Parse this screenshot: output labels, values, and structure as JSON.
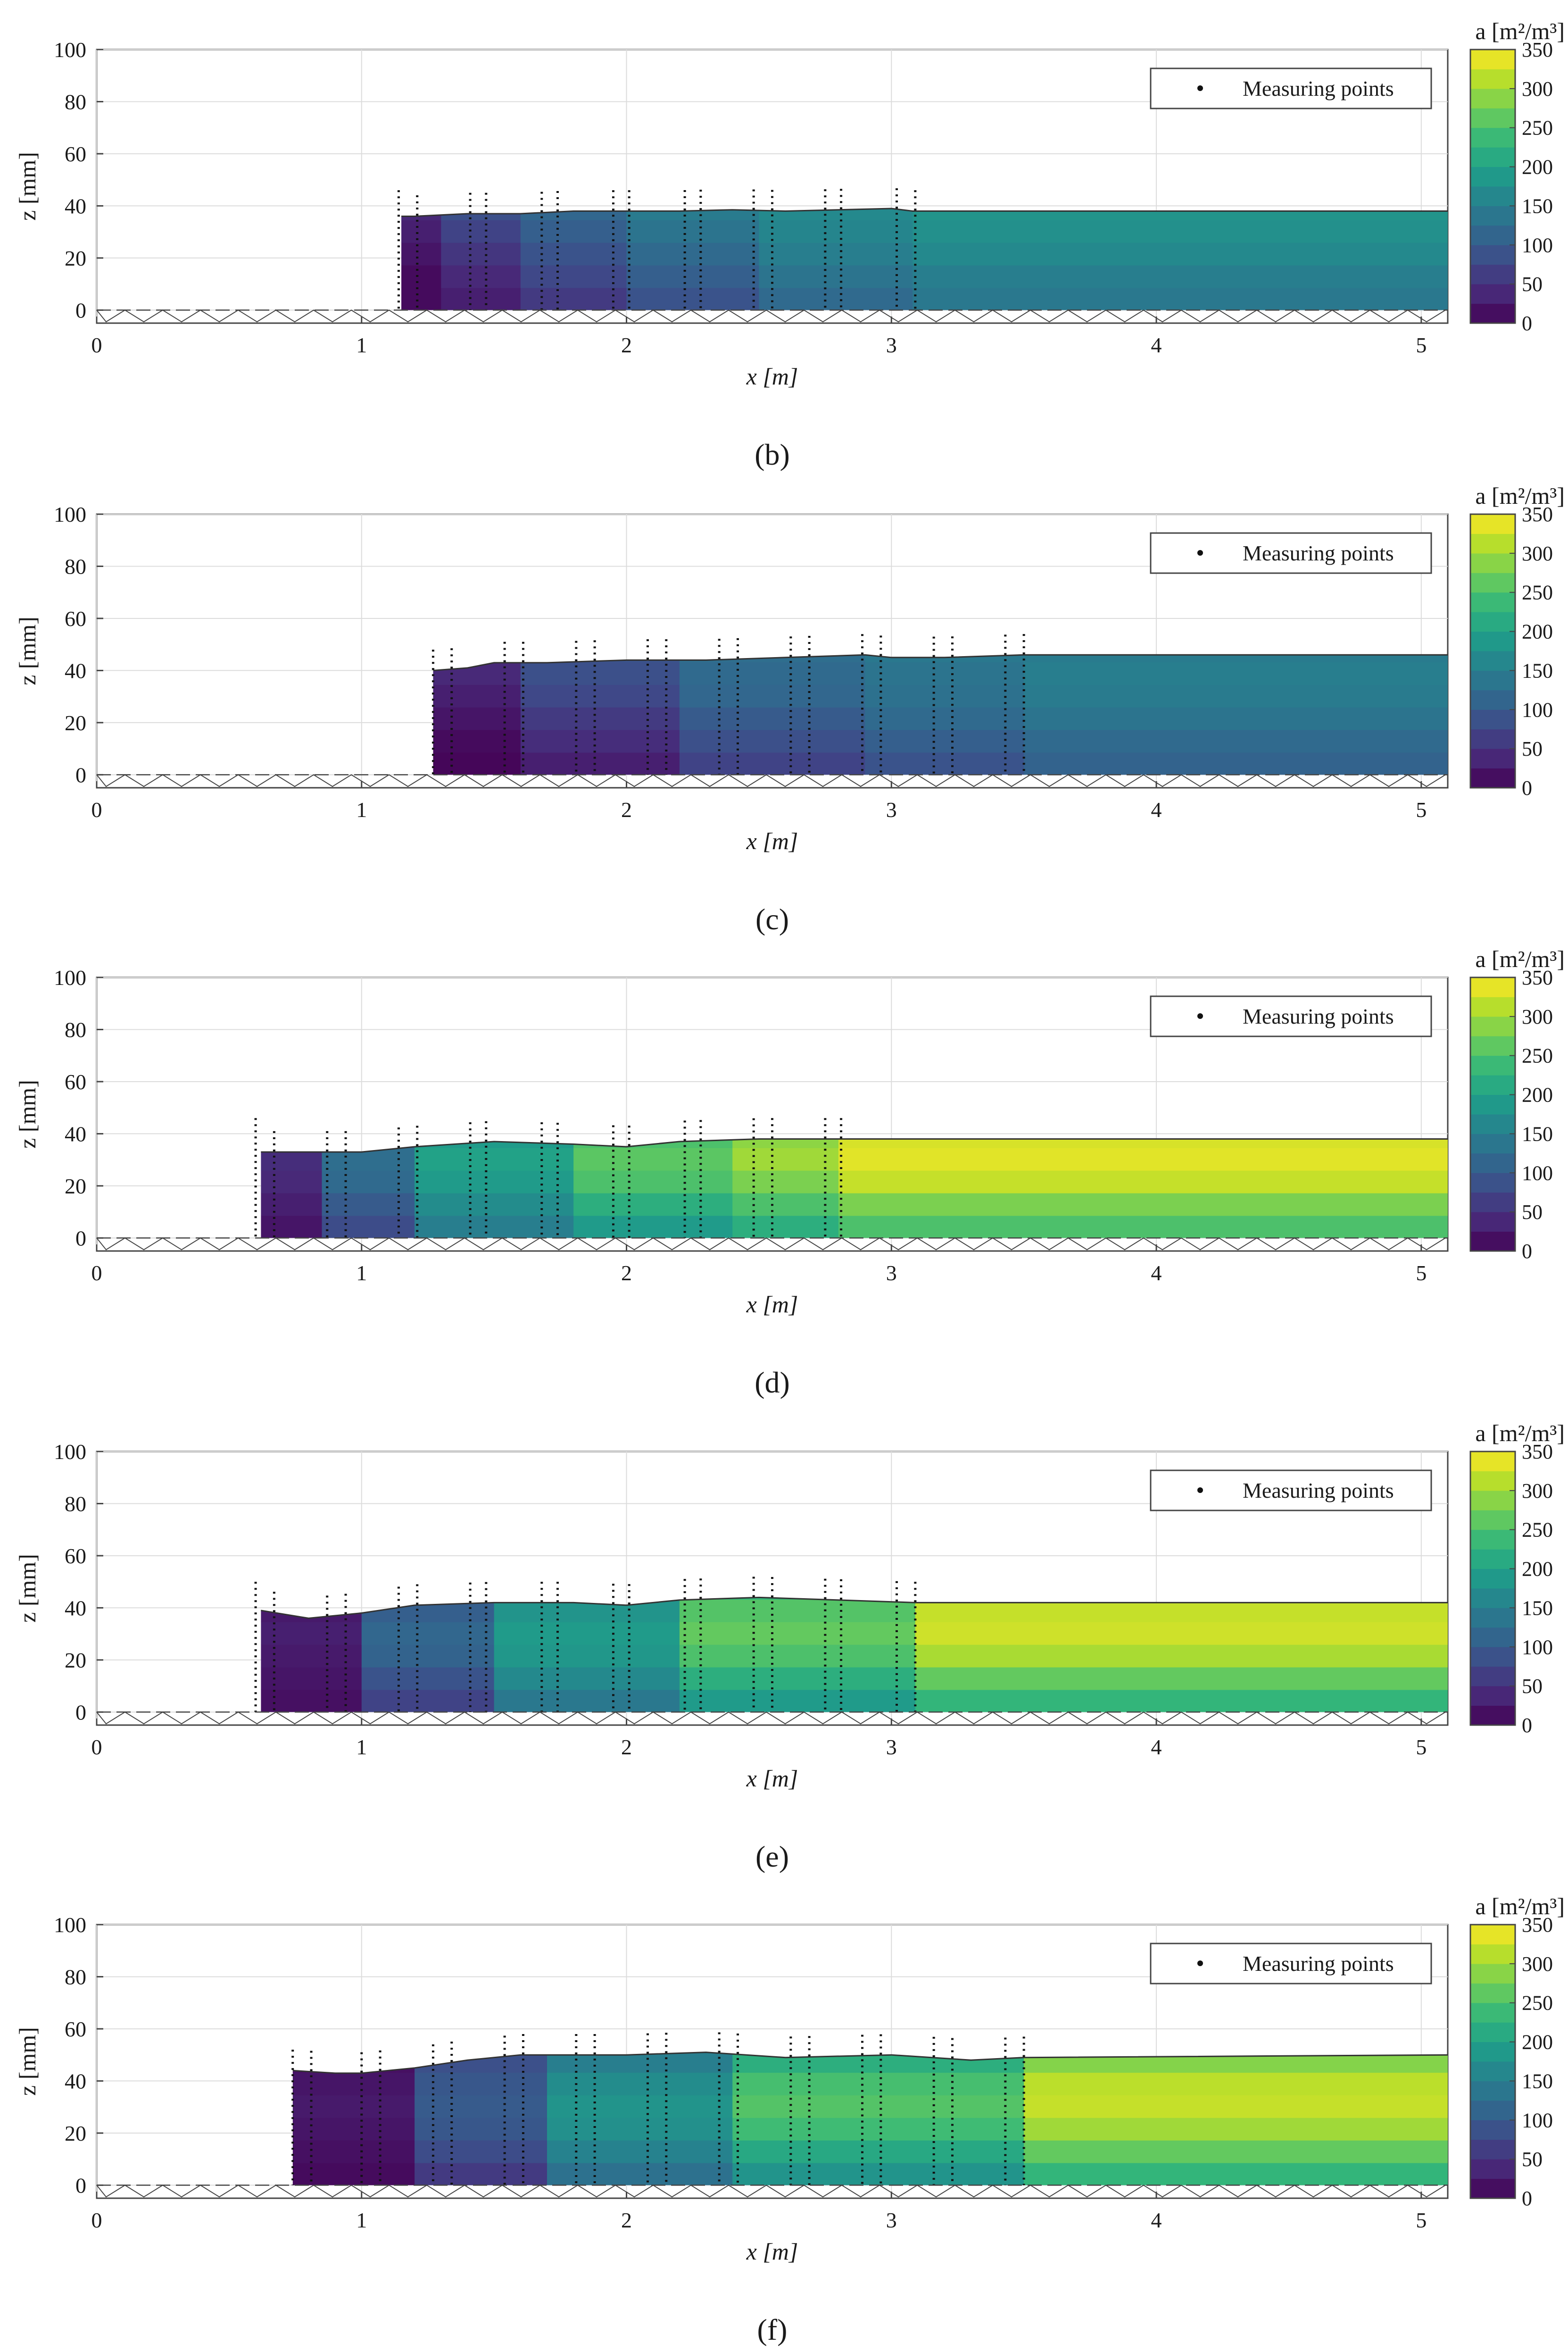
{
  "figure": {
    "colorbar_title": "a [m²/m³]",
    "legend_label": "Measuring points"
  },
  "chart_data": [
    {
      "type": "heatmap",
      "panel_label": "(b)",
      "xlabel": "x [m]",
      "ylabel": "z [mm]",
      "xlim": [
        0,
        5.1
      ],
      "ylim": [
        -5,
        100
      ],
      "xticks": [
        "0",
        "1",
        "2",
        "3",
        "4",
        "5"
      ],
      "yticks": [
        "0",
        "20",
        "40",
        "60",
        "80",
        "100"
      ],
      "colorbar": {
        "label": "a [m²/m³]",
        "range": [
          0,
          350
        ],
        "ticks": [
          "0",
          "50",
          "100",
          "150",
          "200",
          "250",
          "300",
          "350"
        ]
      },
      "legend": "Measuring points",
      "flow_region": {
        "x_start": 1.15,
        "x_end": 5.1,
        "profile_end_x": 3.08,
        "bottom_start_x": 1.18
      },
      "surface_profile": [
        [
          1.15,
          36
        ],
        [
          1.2,
          36
        ],
        [
          1.4,
          37
        ],
        [
          1.6,
          37
        ],
        [
          1.8,
          38
        ],
        [
          2.0,
          38
        ],
        [
          2.2,
          38
        ],
        [
          2.4,
          38.5
        ],
        [
          2.6,
          38
        ],
        [
          2.8,
          38.5
        ],
        [
          3.0,
          39
        ],
        [
          3.08,
          38
        ],
        [
          5.1,
          38
        ]
      ],
      "measuring_stations_x": [
        1.14,
        1.21,
        1.41,
        1.47,
        1.68,
        1.74,
        1.95,
        2.01,
        2.22,
        2.28,
        2.48,
        2.55,
        2.75,
        2.81,
        3.02,
        3.09
      ],
      "area_bands": [
        {
          "x_end": 1.3,
          "values": [
            10,
            10,
            20,
            30,
            40,
            50
          ]
        },
        {
          "x_end": 1.6,
          "values": [
            30,
            40,
            55,
            70,
            85,
            95
          ]
        },
        {
          "x_end": 2.0,
          "values": [
            60,
            75,
            90,
            105,
            115,
            120
          ]
        },
        {
          "x_end": 2.5,
          "values": [
            90,
            105,
            120,
            135,
            145,
            150
          ]
        },
        {
          "x_end": 3.08,
          "values": [
            120,
            135,
            150,
            160,
            165,
            170
          ]
        },
        {
          "x_end": 5.1,
          "values": [
            140,
            150,
            165,
            175,
            180,
            175
          ]
        }
      ]
    },
    {
      "type": "heatmap",
      "panel_label": "(c)",
      "xlabel": "x [m]",
      "ylabel": "z [mm]",
      "xlim": [
        0,
        5.1
      ],
      "ylim": [
        -5,
        100
      ],
      "xticks": [
        "0",
        "1",
        "2",
        "3",
        "4",
        "5"
      ],
      "yticks": [
        "0",
        "20",
        "40",
        "60",
        "80",
        "100"
      ],
      "colorbar": {
        "label": "a [m²/m³]",
        "range": [
          0,
          350
        ],
        "ticks": [
          "0",
          "50",
          "100",
          "150",
          "200",
          "250",
          "300",
          "350"
        ]
      },
      "legend": "Measuring points",
      "flow_region": {
        "x_start": 1.27,
        "x_end": 5.1,
        "profile_end_x": 3.5,
        "bottom_start_x": 1.45
      },
      "surface_profile": [
        [
          1.27,
          40
        ],
        [
          1.4,
          41
        ],
        [
          1.5,
          43
        ],
        [
          1.7,
          43
        ],
        [
          2.0,
          44
        ],
        [
          2.3,
          44
        ],
        [
          2.6,
          45
        ],
        [
          2.9,
          46
        ],
        [
          3.0,
          45
        ],
        [
          3.2,
          45
        ],
        [
          3.5,
          46
        ],
        [
          5.1,
          46
        ]
      ],
      "measuring_stations_x": [
        1.27,
        1.34,
        1.54,
        1.61,
        1.81,
        1.88,
        2.08,
        2.15,
        2.35,
        2.42,
        2.62,
        2.69,
        2.89,
        2.96,
        3.16,
        3.23,
        3.43,
        3.5
      ],
      "area_bands": [
        {
          "x_end": 1.6,
          "values": [
            5,
            10,
            20,
            30,
            40,
            45
          ]
        },
        {
          "x_end": 2.2,
          "values": [
            30,
            45,
            60,
            75,
            85,
            90
          ]
        },
        {
          "x_end": 2.9,
          "values": [
            70,
            85,
            100,
            115,
            120,
            125
          ]
        },
        {
          "x_end": 3.5,
          "values": [
            90,
            105,
            120,
            130,
            135,
            140
          ]
        },
        {
          "x_end": 5.1,
          "values": [
            110,
            120,
            135,
            145,
            150,
            145
          ]
        }
      ]
    },
    {
      "type": "heatmap",
      "panel_label": "(d)",
      "xlabel": "x [m]",
      "ylabel": "z [mm]",
      "xlim": [
        0,
        5.1
      ],
      "ylim": [
        -5,
        100
      ],
      "xticks": [
        "0",
        "1",
        "2",
        "3",
        "4",
        "5"
      ],
      "yticks": [
        "0",
        "20",
        "40",
        "60",
        "80",
        "100"
      ],
      "colorbar": {
        "label": "a [m²/m³]",
        "range": [
          0,
          350
        ],
        "ticks": [
          "0",
          "50",
          "100",
          "150",
          "200",
          "250",
          "300",
          "350"
        ]
      },
      "legend": "Measuring points",
      "flow_region": {
        "x_start": 0.62,
        "x_end": 5.1,
        "profile_end_x": 2.8,
        "bottom_start_x": 0.62
      },
      "surface_profile": [
        [
          0.62,
          33
        ],
        [
          0.8,
          33
        ],
        [
          1.0,
          33
        ],
        [
          1.2,
          35
        ],
        [
          1.5,
          37
        ],
        [
          1.8,
          36
        ],
        [
          2.0,
          35
        ],
        [
          2.2,
          37
        ],
        [
          2.5,
          38
        ],
        [
          2.8,
          38
        ],
        [
          3.0,
          38
        ],
        [
          5.1,
          38
        ]
      ],
      "measuring_stations_x": [
        0.6,
        0.67,
        0.87,
        0.94,
        1.14,
        1.21,
        1.41,
        1.47,
        1.68,
        1.74,
        1.95,
        2.01,
        2.22,
        2.28,
        2.48,
        2.55,
        2.75,
        2.81
      ],
      "area_bands": [
        {
          "x_end": 0.85,
          "values": [
            20,
            30,
            40,
            45,
            40,
            30
          ]
        },
        {
          "x_end": 1.2,
          "values": [
            80,
            100,
            120,
            125,
            115,
            100
          ]
        },
        {
          "x_end": 1.8,
          "values": [
            150,
            170,
            190,
            200,
            190,
            170
          ]
        },
        {
          "x_end": 2.4,
          "values": [
            190,
            220,
            250,
            260,
            250,
            230
          ]
        },
        {
          "x_end": 2.8,
          "values": [
            220,
            250,
            280,
            300,
            290,
            270
          ]
        },
        {
          "x_end": 5.1,
          "values": [
            250,
            280,
            320,
            335,
            330,
            300
          ]
        }
      ]
    },
    {
      "type": "heatmap",
      "panel_label": "(e)",
      "xlabel": "x [m]",
      "ylabel": "z [mm]",
      "xlim": [
        0,
        5.1
      ],
      "ylim": [
        -5,
        100
      ],
      "xticks": [
        "0",
        "1",
        "2",
        "3",
        "4",
        "5"
      ],
      "yticks": [
        "0",
        "20",
        "40",
        "60",
        "80",
        "100"
      ],
      "colorbar": {
        "label": "a [m²/m³]",
        "range": [
          0,
          350
        ],
        "ticks": [
          "0",
          "50",
          "100",
          "150",
          "200",
          "250",
          "300",
          "350"
        ]
      },
      "legend": "Measuring points",
      "flow_region": {
        "x_start": 0.62,
        "x_end": 5.1,
        "profile_end_x": 3.09,
        "bottom_start_x": 0.87
      },
      "surface_profile": [
        [
          0.62,
          39
        ],
        [
          0.8,
          36
        ],
        [
          1.0,
          38
        ],
        [
          1.2,
          41
        ],
        [
          1.5,
          42
        ],
        [
          1.8,
          42
        ],
        [
          2.0,
          41
        ],
        [
          2.2,
          43
        ],
        [
          2.5,
          44
        ],
        [
          2.8,
          43
        ],
        [
          3.09,
          42
        ],
        [
          5.1,
          42
        ]
      ],
      "measuring_stations_x": [
        0.6,
        0.67,
        0.87,
        0.94,
        1.14,
        1.21,
        1.41,
        1.47,
        1.68,
        1.74,
        1.95,
        2.01,
        2.22,
        2.28,
        2.48,
        2.55,
        2.75,
        2.81,
        3.02,
        3.09
      ],
      "area_bands": [
        {
          "x_end": 1.0,
          "values": [
            15,
            20,
            25,
            30,
            25,
            20
          ]
        },
        {
          "x_end": 1.5,
          "values": [
            70,
            90,
            110,
            115,
            105,
            90
          ]
        },
        {
          "x_end": 2.2,
          "values": [
            140,
            165,
            185,
            190,
            180,
            160
          ]
        },
        {
          "x_end": 3.09,
          "values": [
            190,
            220,
            250,
            265,
            255,
            230
          ]
        },
        {
          "x_end": 5.1,
          "values": [
            230,
            265,
            305,
            325,
            320,
            290
          ]
        }
      ]
    },
    {
      "type": "heatmap",
      "panel_label": "(f)",
      "xlabel": "x [m]",
      "ylabel": "z [mm]",
      "xlim": [
        0,
        5.1
      ],
      "ylim": [
        -5,
        100
      ],
      "xticks": [
        "0",
        "1",
        "2",
        "3",
        "4",
        "5"
      ],
      "yticks": [
        "0",
        "20",
        "40",
        "60",
        "80",
        "100"
      ],
      "colorbar": {
        "label": "a [m²/m³]",
        "range": [
          0,
          350
        ],
        "ticks": [
          "0",
          "50",
          "100",
          "150",
          "200",
          "250",
          "300",
          "350"
        ]
      },
      "legend": "Measuring points",
      "flow_region": {
        "x_start": 0.74,
        "x_end": 5.1,
        "profile_end_x": 3.5,
        "bottom_start_x": 1.0
      },
      "surface_profile": [
        [
          0.74,
          44
        ],
        [
          0.9,
          43
        ],
        [
          1.0,
          43
        ],
        [
          1.2,
          45
        ],
        [
          1.4,
          48
        ],
        [
          1.6,
          50
        ],
        [
          1.8,
          50
        ],
        [
          2.0,
          50
        ],
        [
          2.3,
          51
        ],
        [
          2.6,
          49
        ],
        [
          3.0,
          50
        ],
        [
          3.3,
          48
        ],
        [
          3.5,
          49
        ],
        [
          5.1,
          50
        ]
      ],
      "measuring_stations_x": [
        0.74,
        0.81,
        1.0,
        1.07,
        1.27,
        1.34,
        1.54,
        1.61,
        1.81,
        1.88,
        2.08,
        2.15,
        2.35,
        2.42,
        2.62,
        2.69,
        2.89,
        2.96,
        3.16,
        3.23,
        3.43,
        3.5
      ],
      "area_bands": [
        {
          "x_end": 1.2,
          "values": [
            10,
            15,
            20,
            25,
            20,
            15
          ]
        },
        {
          "x_end": 1.7,
          "values": [
            60,
            80,
            95,
            100,
            95,
            85
          ]
        },
        {
          "x_end": 2.4,
          "values": [
            130,
            155,
            175,
            180,
            170,
            150
          ]
        },
        {
          "x_end": 3.5,
          "values": [
            180,
            210,
            240,
            255,
            245,
            220
          ]
        },
        {
          "x_end": 5.1,
          "values": [
            230,
            265,
            300,
            320,
            315,
            285
          ]
        }
      ]
    }
  ]
}
